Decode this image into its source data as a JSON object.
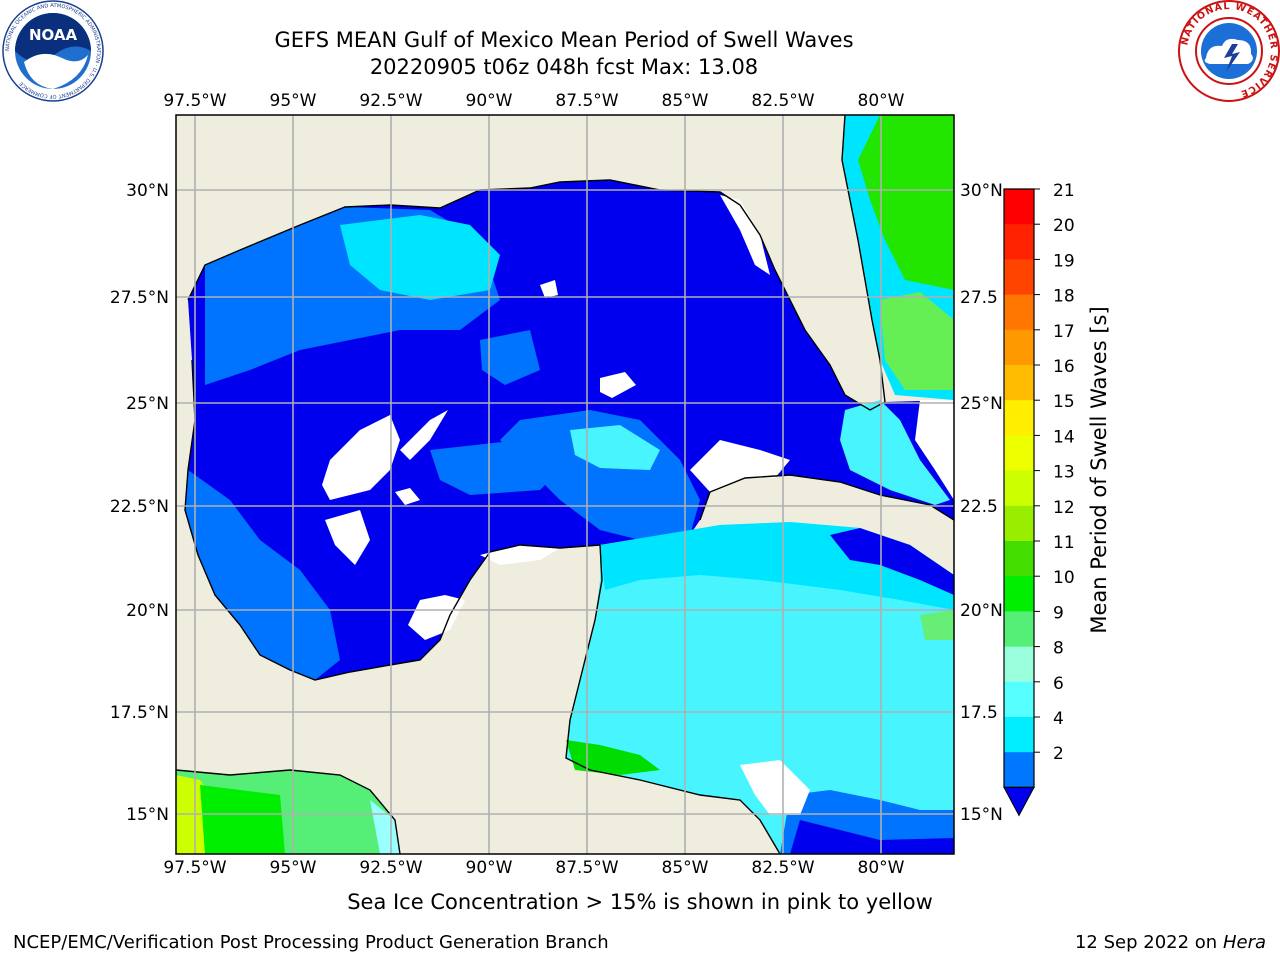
{
  "header": {
    "title_line1": "GEFS MEAN Gulf of Mexico Mean Period of Swell Waves",
    "title_line2": "20220905 t06z 048h fcst   Max: 13.08"
  },
  "map": {
    "lon_labels": [
      "97.5°W",
      "95°W",
      "92.5°W",
      "90°W",
      "87.5°W",
      "85°W",
      "82.5°W",
      "80°W"
    ],
    "lat_labels_left": [
      "30°N",
      "27.5°N",
      "25°N",
      "22.5°N",
      "20°N",
      "17.5°N",
      "15°N"
    ],
    "lat_labels_right": [
      "30°N",
      "27.5",
      "25°N",
      "22.5",
      "20°N",
      "17.5",
      "15°N"
    ],
    "colors": {
      "land": "#efedde",
      "water_blue": "#0000ee",
      "water_mid": "#0073ff",
      "water_cyan": "#00e5ff",
      "water_light": "#48f5ff",
      "water_green": "#00ee00",
      "grid": "#b0b0b0"
    }
  },
  "colorbar": {
    "label": "Mean Period of Swell Waves [s]",
    "ticks": [
      "21",
      "20",
      "19",
      "18",
      "17",
      "16",
      "15",
      "14",
      "13",
      "12",
      "11",
      "10",
      "9",
      "8",
      "6",
      "4",
      "2"
    ],
    "bands": [
      "#ff0000",
      "#ff2200",
      "#ff4400",
      "#ff7700",
      "#ff9900",
      "#ffbb00",
      "#ffee00",
      "#eeff00",
      "#ccff00",
      "#99ee00",
      "#44dd00",
      "#00ee00",
      "#55ee77",
      "#99ffdd",
      "#55ffff",
      "#00eeff",
      "#0077ff"
    ],
    "extend_color": "#0000ee"
  },
  "footer": {
    "note": "Sea Ice Concentration > 15% is shown in pink to yellow",
    "credit_left": "NCEP/EMC/Verification Post Processing Product Generation Branch",
    "credit_right_date": "12 Sep 2022 on",
    "credit_right_host": "Hera"
  },
  "logos": {
    "noaa_text": "NOAA",
    "noaa_ring": "NATIONAL OCEANIC AND ATMOSPHERIC ADMINISTRATION · U.S. DEPARTMENT OF COMMERCE",
    "nws_ring": "NATIONAL WEATHER SERVICE"
  }
}
